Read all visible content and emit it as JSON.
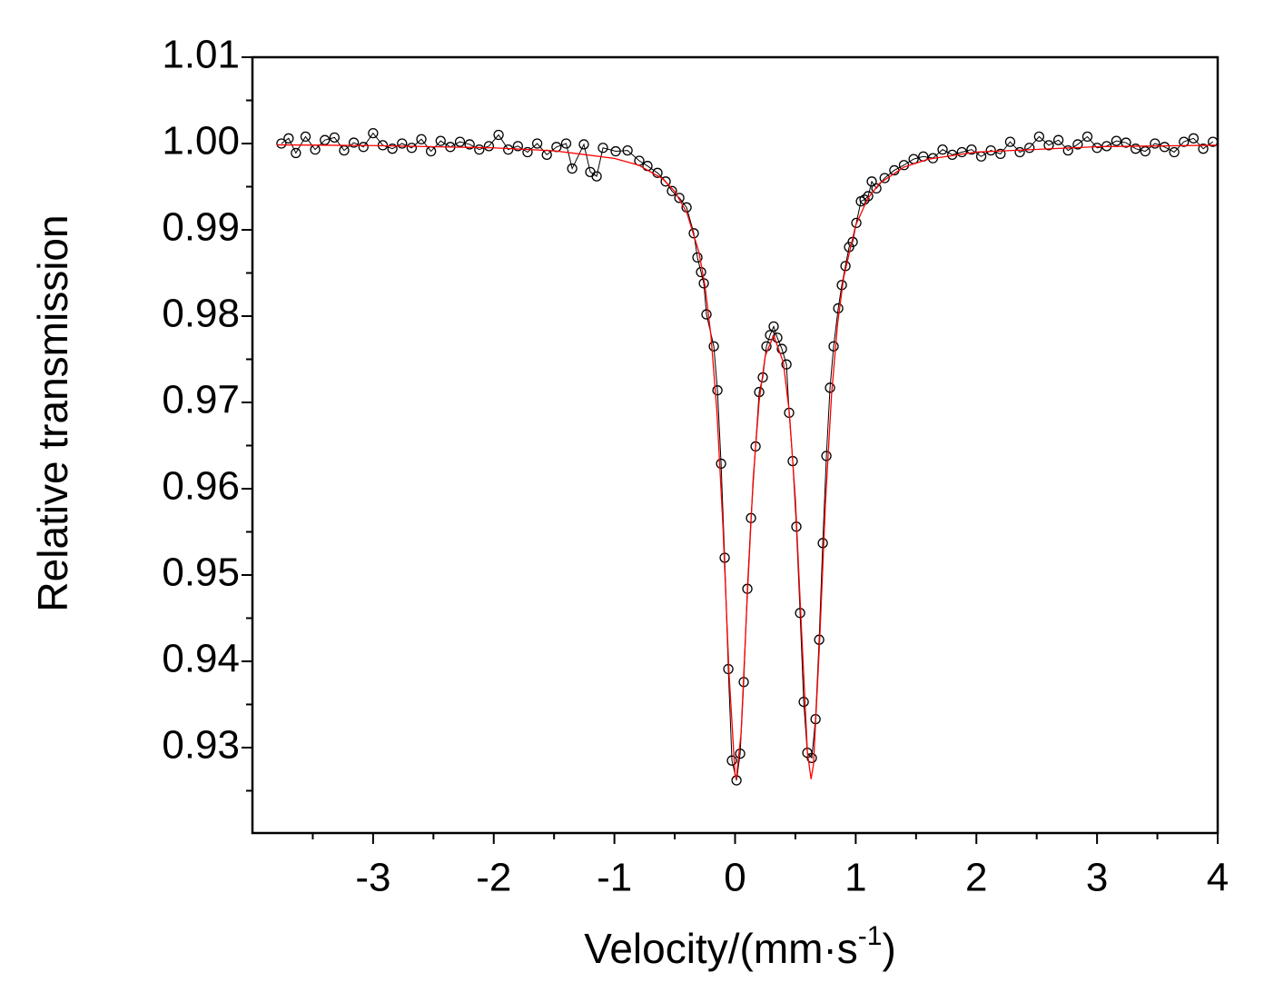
{
  "chart_data": {
    "type": "scatter",
    "x_label": "Velocity/(mm·s",
    "x_label_sup": "-1",
    "x_label_end": ")",
    "y_label": "Relative transmission",
    "xlim": [
      -4,
      4
    ],
    "xticks": [
      -3,
      -2,
      -1,
      0,
      1,
      2,
      3,
      4
    ],
    "xminorticks": [
      -3.5,
      -2.5,
      -1.5,
      -0.5,
      0.5,
      1.5,
      2.5,
      3.5
    ],
    "ylim": [
      0.9201,
      1.01
    ],
    "yticks": [
      0.93,
      0.94,
      0.95,
      0.96,
      0.97,
      0.98,
      0.99,
      {
        "value": 1,
        "label": "1.00"
      },
      1.01
    ],
    "yminorticks": [
      0.925,
      0.935,
      0.945,
      0.955,
      0.965,
      0.975,
      0.985,
      0.995,
      1.005
    ],
    "grid": false,
    "series": [
      {
        "style": "markers-line",
        "color": "#000000",
        "x": [
          -3.76,
          -3.7,
          -3.64,
          -3.56,
          -3.48,
          -3.4,
          -3.32,
          -3.24,
          -3.16,
          -3.08,
          -3.0,
          -2.92,
          -2.84,
          -2.76,
          -2.68,
          -2.6,
          -2.52,
          -2.44,
          -2.36,
          -2.28,
          -2.2,
          -2.12,
          -2.04,
          -1.96,
          -1.88,
          -1.8,
          -1.72,
          -1.64,
          -1.56,
          -1.48,
          -1.4,
          -1.35,
          -1.253,
          -1.2,
          -1.147,
          -1.095,
          -0.989,
          -0.891,
          -0.794,
          -0.726,
          -0.643,
          -0.575,
          -0.523,
          -0.462,
          -0.402,
          -0.342,
          -0.312,
          -0.282,
          -0.259,
          -0.237,
          -0.176,
          -0.146,
          -0.116,
          -0.086,
          -0.056,
          -0.026,
          0.012,
          0.042,
          0.072,
          0.102,
          0.132,
          0.17,
          0.2,
          0.23,
          0.26,
          0.29,
          0.32,
          0.35,
          0.388,
          0.426,
          0.448,
          0.478,
          0.508,
          0.539,
          0.569,
          0.599,
          0.636,
          0.667,
          0.697,
          0.727,
          0.757,
          0.787,
          0.817,
          0.855,
          0.885,
          0.915,
          0.945,
          0.975,
          1.005,
          1.043,
          1.073,
          1.103,
          1.133,
          1.171,
          1.24,
          1.32,
          1.4,
          1.48,
          1.56,
          1.64,
          1.72,
          1.8,
          1.88,
          1.96,
          2.04,
          2.12,
          2.2,
          2.28,
          2.36,
          2.44,
          2.52,
          2.6,
          2.68,
          2.76,
          2.84,
          2.92,
          3.0,
          3.08,
          3.16,
          3.24,
          3.32,
          3.4,
          3.48,
          3.56,
          3.64,
          3.72,
          3.8,
          3.88,
          3.96
        ],
        "values": [
          1.0,
          1.0006,
          0.9989,
          1.0008,
          0.9993,
          1.0004,
          1.0007,
          0.9992,
          1.0001,
          0.9996,
          1.0012,
          0.9998,
          0.9994,
          1.0,
          0.9995,
          1.0005,
          0.9991,
          1.0003,
          0.9996,
          1.0002,
          0.9999,
          0.9993,
          0.9997,
          1.001,
          0.9993,
          0.9997,
          0.999,
          1.0,
          0.9987,
          0.9996,
          1.0,
          0.9971,
          0.9999,
          0.9967,
          0.9962,
          0.9995,
          0.9991,
          0.9992,
          0.998,
          0.9974,
          0.9966,
          0.9956,
          0.9945,
          0.9937,
          0.9926,
          0.9896,
          0.9868,
          0.9851,
          0.9838,
          0.9802,
          0.9765,
          0.9714,
          0.9629,
          0.952,
          0.9391,
          0.9285,
          0.9262,
          0.9293,
          0.9376,
          0.9484,
          0.9566,
          0.9649,
          0.9712,
          0.9729,
          0.9765,
          0.9778,
          0.9788,
          0.9775,
          0.9762,
          0.9744,
          0.9688,
          0.9632,
          0.9556,
          0.9456,
          0.9353,
          0.9294,
          0.9288,
          0.9333,
          0.9425,
          0.9537,
          0.9638,
          0.9717,
          0.9765,
          0.9809,
          0.9836,
          0.9858,
          0.988,
          0.9886,
          0.9908,
          0.9933,
          0.9935,
          0.9939,
          0.9956,
          0.9948,
          0.996,
          0.9969,
          0.9975,
          0.9982,
          0.9985,
          0.9983,
          0.9993,
          0.9987,
          0.999,
          0.9993,
          0.9985,
          0.9992,
          0.9988,
          1.0002,
          0.999,
          0.9995,
          1.0008,
          0.9998,
          1.0004,
          0.9992,
          0.9999,
          1.0008,
          0.9995,
          0.9997,
          1.0003,
          1.0001,
          0.9994,
          0.9991,
          1.0,
          0.9996,
          0.999,
          1.0002,
          1.0006,
          0.9994,
          1.0002
        ]
      },
      {
        "style": "line",
        "color": "#ff0000",
        "x": [
          -3.8,
          -3,
          -2,
          -1.5,
          -1,
          -0.8,
          -0.6,
          -0.5,
          -0.4,
          -0.3,
          -0.25,
          -0.2,
          -0.15,
          -0.1,
          -0.05,
          0,
          0.01,
          0.05,
          0.1,
          0.15,
          0.2,
          0.25,
          0.32,
          0.4,
          0.45,
          0.5,
          0.55,
          0.6,
          0.63,
          0.65,
          0.7,
          0.75,
          0.8,
          0.85,
          0.9,
          1.0,
          1.1,
          1.2,
          1.4,
          1.6,
          2,
          3,
          4
        ],
        "values": [
          0.99985,
          0.99976,
          0.9995,
          0.99916,
          0.99828,
          0.9975,
          0.99592,
          0.99446,
          0.992,
          0.98744,
          0.98358,
          0.97777,
          0.96886,
          0.95554,
          0.93861,
          0.92683,
          0.92635,
          0.93168,
          0.94714,
          0.96115,
          0.97021,
          0.97539,
          0.97776,
          0.97464,
          0.96882,
          0.95873,
          0.94389,
          0.92939,
          0.92635,
          0.92805,
          0.94201,
          0.95859,
          0.97096,
          0.97914,
          0.98447,
          0.99054,
          0.99364,
          0.99541,
          0.99727,
          0.99818,
          0.99901,
          0.99963,
          0.99981
        ]
      }
    ]
  }
}
